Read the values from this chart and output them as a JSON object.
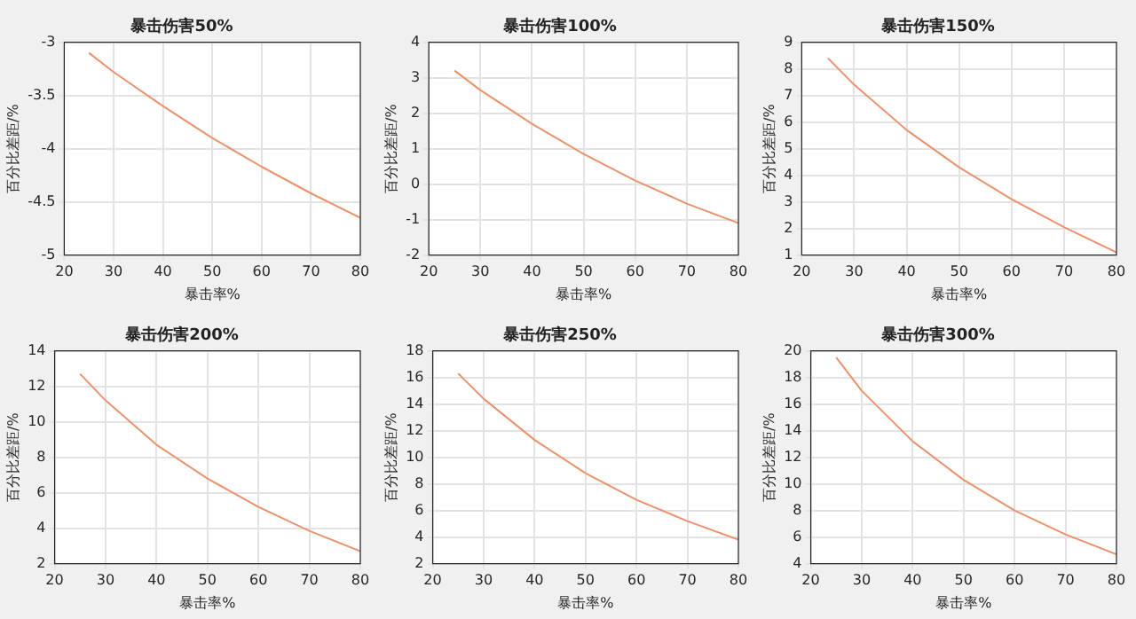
{
  "chart_data": [
    {
      "type": "line",
      "title": "暴击伤害50%",
      "xlabel": "暴击率%",
      "ylabel": "百分比差距/%",
      "x": [
        25,
        30,
        40,
        50,
        60,
        70,
        80
      ],
      "xlim": [
        20,
        80
      ],
      "xticks": [
        20,
        30,
        40,
        50,
        60,
        70,
        80
      ],
      "ylim": [
        -5,
        -3
      ],
      "yticks": [
        -5,
        -4.5,
        -4,
        -3.5,
        -3
      ],
      "grid": true,
      "series": [
        {
          "color": "#e9926c",
          "values": [
            -3.1,
            -3.28,
            -3.6,
            -3.9,
            -4.17,
            -4.42,
            -4.65
          ]
        }
      ]
    },
    {
      "type": "line",
      "title": "暴击伤害100%",
      "xlabel": "暴击率%",
      "ylabel": "百分比差距/%",
      "x": [
        25,
        30,
        40,
        50,
        60,
        70,
        80
      ],
      "xlim": [
        20,
        80
      ],
      "xticks": [
        20,
        30,
        40,
        50,
        60,
        70,
        80
      ],
      "ylim": [
        -2,
        4
      ],
      "yticks": [
        -2,
        -1,
        0,
        1,
        2,
        3,
        4
      ],
      "grid": true,
      "series": [
        {
          "color": "#e9926c",
          "values": [
            3.2,
            2.65,
            1.7,
            0.85,
            0.1,
            -0.55,
            -1.1
          ]
        }
      ]
    },
    {
      "type": "line",
      "title": "暴击伤害150%",
      "xlabel": "暴击率%",
      "ylabel": "百分比差距/%",
      "x": [
        25,
        30,
        40,
        50,
        60,
        70,
        80
      ],
      "xlim": [
        20,
        80
      ],
      "xticks": [
        20,
        30,
        40,
        50,
        60,
        70,
        80
      ],
      "ylim": [
        1,
        9
      ],
      "yticks": [
        1,
        2,
        3,
        4,
        5,
        6,
        7,
        8,
        9
      ],
      "grid": true,
      "series": [
        {
          "color": "#e9926c",
          "values": [
            8.4,
            7.4,
            5.7,
            4.3,
            3.1,
            2.05,
            1.1
          ]
        }
      ]
    },
    {
      "type": "line",
      "title": "暴击伤害200%",
      "xlabel": "暴击率%",
      "ylabel": "百分比差距/%",
      "x": [
        25,
        30,
        40,
        50,
        60,
        70,
        80
      ],
      "xlim": [
        20,
        80
      ],
      "xticks": [
        20,
        30,
        40,
        50,
        60,
        70,
        80
      ],
      "ylim": [
        2,
        14
      ],
      "yticks": [
        2,
        4,
        6,
        8,
        10,
        12,
        14
      ],
      "grid": true,
      "series": [
        {
          "color": "#e9926c",
          "values": [
            12.7,
            11.2,
            8.7,
            6.8,
            5.2,
            3.85,
            2.7
          ]
        }
      ]
    },
    {
      "type": "line",
      "title": "暴击伤害250%",
      "xlabel": "暴击率%",
      "ylabel": "百分比差距/%",
      "x": [
        25,
        30,
        40,
        50,
        60,
        70,
        80
      ],
      "xlim": [
        20,
        80
      ],
      "xticks": [
        20,
        30,
        40,
        50,
        60,
        70,
        80
      ],
      "ylim": [
        2,
        18
      ],
      "yticks": [
        2,
        4,
        6,
        8,
        10,
        12,
        14,
        16,
        18
      ],
      "grid": true,
      "series": [
        {
          "color": "#e9926c",
          "values": [
            16.3,
            14.4,
            11.3,
            8.8,
            6.8,
            5.2,
            3.8
          ]
        }
      ]
    },
    {
      "type": "line",
      "title": "暴击伤害300%",
      "xlabel": "暴击率%",
      "ylabel": "百分比差距/%",
      "x": [
        25,
        30,
        40,
        50,
        60,
        70,
        80
      ],
      "xlim": [
        20,
        80
      ],
      "xticks": [
        20,
        30,
        40,
        50,
        60,
        70,
        80
      ],
      "ylim": [
        4,
        20
      ],
      "yticks": [
        4,
        6,
        8,
        10,
        12,
        14,
        16,
        18,
        20
      ],
      "grid": true,
      "series": [
        {
          "color": "#e9926c",
          "values": [
            19.5,
            17.0,
            13.2,
            10.3,
            8.0,
            6.2,
            4.7
          ]
        }
      ]
    }
  ]
}
